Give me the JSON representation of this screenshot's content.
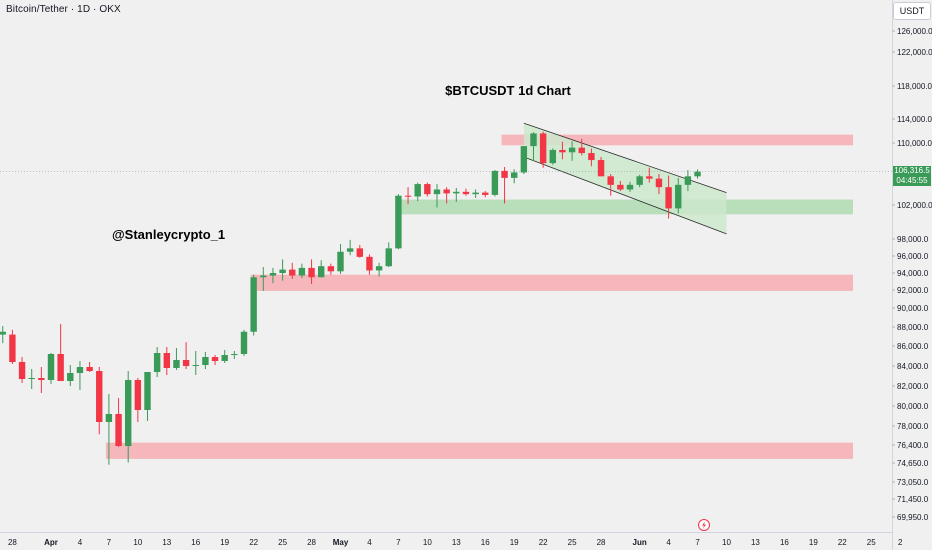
{
  "header": {
    "symbol_title": "Bitcoin/Tether · 1D · OKX",
    "currency": "USDT"
  },
  "annotations": {
    "headline": "$BTCUSDT 1d Chart",
    "watermark": "@Stanleycrypto_1"
  },
  "last_price": {
    "value": "106,316.5",
    "countdown": "04:45:55",
    "color": "#3a9a57"
  },
  "colors": {
    "background": "#f0f0f0",
    "up": "#3a9a57",
    "down": "#f23645",
    "zone_red": "#f4b3b7",
    "zone_green": "#b4dcb6",
    "channel_fill": "#cce8cd"
  },
  "chart_data": {
    "type": "candlestick",
    "title": "$BTCUSDT 1d Chart",
    "symbol": "Bitcoin/Tether · 1D · OKX",
    "currency": "USDT",
    "y_ticks": [
      {
        "label": "126,000.0",
        "value": 126000
      },
      {
        "label": "122,000.0",
        "value": 122000
      },
      {
        "label": "118,000.0",
        "value": 118000
      },
      {
        "label": "114,000.0",
        "value": 114000
      },
      {
        "label": "110,000.0",
        "value": 110000
      },
      {
        "label": "102,000.0",
        "value": 102000
      },
      {
        "label": "98,000.0",
        "value": 98000
      },
      {
        "label": "96,000.0",
        "value": 96000
      },
      {
        "label": "94,000.0",
        "value": 94000
      },
      {
        "label": "92,000.0",
        "value": 92000
      },
      {
        "label": "90,000.0",
        "value": 90000
      },
      {
        "label": "88,000.0",
        "value": 88000
      },
      {
        "label": "86,000.0",
        "value": 86000
      },
      {
        "label": "84,000.0",
        "value": 84000
      },
      {
        "label": "82,000.0",
        "value": 82000
      },
      {
        "label": "80,000.0",
        "value": 80000
      },
      {
        "label": "78,000.0",
        "value": 78000
      },
      {
        "label": "76,400.0",
        "value": 76400
      },
      {
        "label": "74,650.0",
        "value": 74650
      },
      {
        "label": "73,050.0",
        "value": 73050
      },
      {
        "label": "71,450.0",
        "value": 71450
      },
      {
        "label": "69,950.0",
        "value": 69950
      }
    ],
    "x_ticks": [
      {
        "label": "28",
        "day": -4
      },
      {
        "label": "Apr",
        "day": 0,
        "bold": true
      },
      {
        "label": "4",
        "day": 3
      },
      {
        "label": "7",
        "day": 6
      },
      {
        "label": "10",
        "day": 9
      },
      {
        "label": "13",
        "day": 12
      },
      {
        "label": "16",
        "day": 15
      },
      {
        "label": "19",
        "day": 18
      },
      {
        "label": "22",
        "day": 21
      },
      {
        "label": "25",
        "day": 24
      },
      {
        "label": "28",
        "day": 27
      },
      {
        "label": "May",
        "day": 30,
        "bold": true
      },
      {
        "label": "4",
        "day": 33
      },
      {
        "label": "7",
        "day": 36
      },
      {
        "label": "10",
        "day": 39
      },
      {
        "label": "13",
        "day": 42
      },
      {
        "label": "16",
        "day": 45
      },
      {
        "label": "19",
        "day": 48
      },
      {
        "label": "22",
        "day": 51
      },
      {
        "label": "25",
        "day": 54
      },
      {
        "label": "28",
        "day": 57
      },
      {
        "label": "Jun",
        "day": 61,
        "bold": true
      },
      {
        "label": "4",
        "day": 64
      },
      {
        "label": "7",
        "day": 67
      },
      {
        "label": "10",
        "day": 70
      },
      {
        "label": "13",
        "day": 73
      },
      {
        "label": "16",
        "day": 76
      },
      {
        "label": "19",
        "day": 79
      },
      {
        "label": "22",
        "day": 82
      },
      {
        "label": "25",
        "day": 85
      },
      {
        "label": "2",
        "day": 88
      }
    ],
    "ohlc": [
      {
        "day": -5,
        "o": 87200,
        "h": 88100,
        "l": 86300,
        "c": 87500
      },
      {
        "day": -4,
        "o": 87200,
        "h": 87700,
        "l": 84200,
        "c": 84400
      },
      {
        "day": -3,
        "o": 84400,
        "h": 84900,
        "l": 82300,
        "c": 82700
      },
      {
        "day": -2,
        "o": 82700,
        "h": 83700,
        "l": 81700,
        "c": 82800
      },
      {
        "day": -1,
        "o": 82800,
        "h": 83900,
        "l": 81300,
        "c": 82600
      },
      {
        "day": 0,
        "o": 82600,
        "h": 85300,
        "l": 82200,
        "c": 85200
      },
      {
        "day": 1,
        "o": 85200,
        "h": 88300,
        "l": 82500,
        "c": 82500
      },
      {
        "day": 2,
        "o": 82500,
        "h": 84100,
        "l": 82000,
        "c": 83300
      },
      {
        "day": 3,
        "o": 83300,
        "h": 84500,
        "l": 81600,
        "c": 83900
      },
      {
        "day": 4,
        "o": 83900,
        "h": 84400,
        "l": 83400,
        "c": 83500
      },
      {
        "day": 5,
        "o": 83500,
        "h": 83900,
        "l": 77300,
        "c": 78400
      },
      {
        "day": 6,
        "o": 78400,
        "h": 81200,
        "l": 74500,
        "c": 79200
      },
      {
        "day": 7,
        "o": 79200,
        "h": 80800,
        "l": 76200,
        "c": 76300
      },
      {
        "day": 8,
        "o": 76300,
        "h": 83500,
        "l": 74700,
        "c": 82600
      },
      {
        "day": 9,
        "o": 82600,
        "h": 82800,
        "l": 78400,
        "c": 79600
      },
      {
        "day": 10,
        "o": 79600,
        "h": 83200,
        "l": 78500,
        "c": 83400
      },
      {
        "day": 11,
        "o": 83400,
        "h": 85900,
        "l": 82900,
        "c": 85300
      },
      {
        "day": 12,
        "o": 85300,
        "h": 85900,
        "l": 83100,
        "c": 83800
      },
      {
        "day": 13,
        "o": 83800,
        "h": 85800,
        "l": 83600,
        "c": 84600
      },
      {
        "day": 14,
        "o": 84600,
        "h": 86400,
        "l": 83700,
        "c": 84000
      },
      {
        "day": 15,
        "o": 84000,
        "h": 85500,
        "l": 83100,
        "c": 84100
      },
      {
        "day": 16,
        "o": 84100,
        "h": 85400,
        "l": 83700,
        "c": 84900
      },
      {
        "day": 17,
        "o": 84900,
        "h": 85100,
        "l": 84100,
        "c": 84500
      },
      {
        "day": 18,
        "o": 84500,
        "h": 85600,
        "l": 84300,
        "c": 85100
      },
      {
        "day": 19,
        "o": 85100,
        "h": 85500,
        "l": 84700,
        "c": 85200
      },
      {
        "day": 20,
        "o": 85200,
        "h": 87700,
        "l": 85000,
        "c": 87500
      },
      {
        "day": 21,
        "o": 87500,
        "h": 93800,
        "l": 87100,
        "c": 93500
      },
      {
        "day": 22,
        "o": 93500,
        "h": 94700,
        "l": 91900,
        "c": 93700
      },
      {
        "day": 23,
        "o": 93700,
        "h": 94600,
        "l": 92800,
        "c": 94000
      },
      {
        "day": 24,
        "o": 94000,
        "h": 95600,
        "l": 93100,
        "c": 94400
      },
      {
        "day": 25,
        "o": 94400,
        "h": 95200,
        "l": 93300,
        "c": 93700
      },
      {
        "day": 26,
        "o": 93700,
        "h": 95100,
        "l": 93400,
        "c": 94600
      },
      {
        "day": 27,
        "o": 94600,
        "h": 95600,
        "l": 92700,
        "c": 93500
      },
      {
        "day": 28,
        "o": 93500,
        "h": 95500,
        "l": 93500,
        "c": 94800
      },
      {
        "day": 29,
        "o": 94800,
        "h": 95100,
        "l": 93800,
        "c": 94200
      },
      {
        "day": 30,
        "o": 94200,
        "h": 97400,
        "l": 93900,
        "c": 96500
      },
      {
        "day": 31,
        "o": 96500,
        "h": 97900,
        "l": 96100,
        "c": 96900
      },
      {
        "day": 32,
        "o": 96900,
        "h": 97300,
        "l": 95800,
        "c": 95900
      },
      {
        "day": 33,
        "o": 95900,
        "h": 96200,
        "l": 93800,
        "c": 94300
      },
      {
        "day": 34,
        "o": 94300,
        "h": 95200,
        "l": 93600,
        "c": 94800
      },
      {
        "day": 35,
        "o": 94800,
        "h": 97600,
        "l": 94700,
        "c": 96900
      },
      {
        "day": 36,
        "o": 96900,
        "h": 103400,
        "l": 96800,
        "c": 103200
      },
      {
        "day": 37,
        "o": 103200,
        "h": 104300,
        "l": 102100,
        "c": 103100
      },
      {
        "day": 38,
        "o": 103100,
        "h": 104900,
        "l": 102500,
        "c": 104700
      },
      {
        "day": 39,
        "o": 104700,
        "h": 104900,
        "l": 103100,
        "c": 103400
      },
      {
        "day": 40,
        "o": 103400,
        "h": 104700,
        "l": 101700,
        "c": 104000
      },
      {
        "day": 41,
        "o": 104000,
        "h": 104300,
        "l": 102200,
        "c": 103500
      },
      {
        "day": 42,
        "o": 103500,
        "h": 104200,
        "l": 102400,
        "c": 103700
      },
      {
        "day": 43,
        "o": 103700,
        "h": 104100,
        "l": 103200,
        "c": 103400
      },
      {
        "day": 44,
        "o": 103400,
        "h": 104000,
        "l": 102900,
        "c": 103600
      },
      {
        "day": 45,
        "o": 103600,
        "h": 103800,
        "l": 103000,
        "c": 103300
      },
      {
        "day": 46,
        "o": 103300,
        "h": 106500,
        "l": 103100,
        "c": 106400
      },
      {
        "day": 47,
        "o": 106400,
        "h": 106900,
        "l": 102200,
        "c": 105500
      },
      {
        "day": 48,
        "o": 105500,
        "h": 106600,
        "l": 104800,
        "c": 106200
      },
      {
        "day": 49,
        "o": 106200,
        "h": 109600,
        "l": 106000,
        "c": 109600
      },
      {
        "day": 50,
        "o": 109600,
        "h": 111800,
        "l": 107700,
        "c": 111600
      },
      {
        "day": 51,
        "o": 111600,
        "h": 111900,
        "l": 106800,
        "c": 107400
      },
      {
        "day": 52,
        "o": 107400,
        "h": 109300,
        "l": 107200,
        "c": 109100
      },
      {
        "day": 53,
        "o": 109100,
        "h": 110200,
        "l": 107900,
        "c": 108800
      },
      {
        "day": 54,
        "o": 108800,
        "h": 110300,
        "l": 107700,
        "c": 109400
      },
      {
        "day": 55,
        "o": 109400,
        "h": 110700,
        "l": 108400,
        "c": 108700
      },
      {
        "day": 56,
        "o": 108700,
        "h": 109300,
        "l": 107000,
        "c": 107800
      },
      {
        "day": 57,
        "o": 107800,
        "h": 108200,
        "l": 105800,
        "c": 105700
      },
      {
        "day": 58,
        "o": 105700,
        "h": 106000,
        "l": 103200,
        "c": 104600
      },
      {
        "day": 59,
        "o": 104600,
        "h": 105100,
        "l": 103800,
        "c": 104000
      },
      {
        "day": 60,
        "o": 104000,
        "h": 105000,
        "l": 103700,
        "c": 104600
      },
      {
        "day": 61,
        "o": 104600,
        "h": 105900,
        "l": 104300,
        "c": 105700
      },
      {
        "day": 62,
        "o": 105700,
        "h": 106800,
        "l": 104900,
        "c": 105400
      },
      {
        "day": 63,
        "o": 105400,
        "h": 106000,
        "l": 103400,
        "c": 104300
      },
      {
        "day": 64,
        "o": 104300,
        "h": 105800,
        "l": 100400,
        "c": 101600
      },
      {
        "day": 65,
        "o": 101600,
        "h": 105500,
        "l": 101000,
        "c": 104600
      },
      {
        "day": 66,
        "o": 104600,
        "h": 106500,
        "l": 103800,
        "c": 105700
      },
      {
        "day": 67,
        "o": 105700,
        "h": 106600,
        "l": 105400,
        "c": 106300
      }
    ],
    "zones": [
      {
        "kind": "resistance",
        "from": 109700,
        "to": 111400,
        "start_day": 47,
        "color": "#f4b3b7"
      },
      {
        "kind": "support",
        "from": 100900,
        "to": 102700,
        "start_day": 36,
        "color": "#b4dcb6"
      },
      {
        "kind": "resistance",
        "from": 91900,
        "to": 93800,
        "start_day": 21,
        "color": "#f4b3b7"
      },
      {
        "kind": "support",
        "from": 75050,
        "to": 76600,
        "start_day": 6,
        "color": "#f4b3b7"
      }
    ],
    "channel": {
      "upper": [
        {
          "day": 49,
          "value": 113300
        },
        {
          "day": 70,
          "value": 103600
        }
      ],
      "lower": [
        {
          "day": 49,
          "value": 108200
        },
        {
          "day": 70,
          "value": 98600
        }
      ]
    },
    "last_price": 106316.5
  }
}
